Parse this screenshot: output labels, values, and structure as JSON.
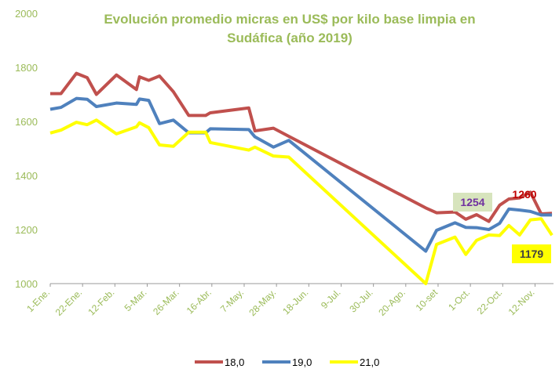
{
  "chart_data": {
    "type": "line",
    "title": [
      "Evolución promedio micras en US$ por kilo base limpia en",
      "Sudáfica (año 2019)"
    ],
    "x": [
      0,
      7,
      17,
      24,
      30,
      43,
      56,
      58,
      64,
      71,
      80,
      90,
      101,
      104,
      129,
      133,
      145,
      155,
      244,
      251,
      263,
      270,
      277,
      285,
      292,
      298,
      305,
      312,
      319,
      326
    ],
    "series": [
      {
        "name": "18,0",
        "color": "#c0504d",
        "values": [
          1703,
          1703,
          1778,
          1762,
          1700,
          1772,
          1718,
          1765,
          1752,
          1768,
          1710,
          1622,
          1622,
          1632,
          1650,
          1565,
          1575,
          1545,
          1280,
          1262,
          1265,
          1238,
          1255,
          1230,
          1290,
          1313,
          1317,
          1338,
          1258,
          1260
        ]
      },
      {
        "name": "19,0",
        "color": "#4f81bd",
        "values": [
          1645,
          1652,
          1685,
          1682,
          1655,
          1668,
          1663,
          1683,
          1678,
          1592,
          1605,
          1558,
          1558,
          1573,
          1570,
          1543,
          1505,
          1530,
          1120,
          1197,
          1225,
          1208,
          1207,
          1200,
          1223,
          1276,
          1272,
          1267,
          1254,
          1254
        ]
      },
      {
        "name": "21,0",
        "color": "#ffff00",
        "values": [
          1557,
          1568,
          1597,
          1588,
          1605,
          1554,
          1580,
          1595,
          1577,
          1513,
          1508,
          1560,
          1560,
          1522,
          1494,
          1505,
          1472,
          1468,
          1000,
          1145,
          1172,
          1108,
          1160,
          1180,
          1178,
          1215,
          1180,
          1236,
          1240,
          1179
        ]
      }
    ],
    "annotations": [
      "1260",
      "1254",
      "1179"
    ],
    "xlim": [
      0,
      327
    ],
    "xticks": [
      {
        "value": 0,
        "label": "1-Ene."
      },
      {
        "value": 21,
        "label": "22-Ene."
      },
      {
        "value": 42,
        "label": "12-Feb."
      },
      {
        "value": 63,
        "label": "5-Mar."
      },
      {
        "value": 84,
        "label": "26-Mar."
      },
      {
        "value": 105,
        "label": "16-Abr."
      },
      {
        "value": 126,
        "label": "7-May."
      },
      {
        "value": 147,
        "label": "28-May."
      },
      {
        "value": 168,
        "label": "18-Jun."
      },
      {
        "value": 189,
        "label": "9-Jul."
      },
      {
        "value": 210,
        "label": "30-Jul."
      },
      {
        "value": 231,
        "label": "20-Ago."
      },
      {
        "value": 252,
        "label": "10-set"
      },
      {
        "value": 273,
        "label": "1-Oct."
      },
      {
        "value": 294,
        "label": "22-Oct."
      },
      {
        "value": 315,
        "label": "12-Nov."
      }
    ],
    "ylim": [
      1000,
      2000
    ],
    "yticks": [
      1000,
      1200,
      1400,
      1600,
      1800,
      2000
    ],
    "grid": false,
    "legend": "bottom"
  }
}
